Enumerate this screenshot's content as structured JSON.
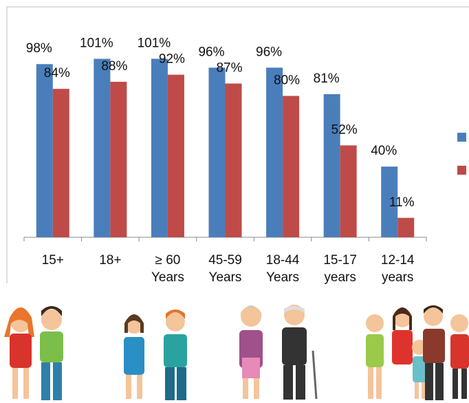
{
  "chart_data": {
    "type": "bar",
    "categories": [
      "15+",
      "18+",
      "≥ 60 Years",
      "45-59 Years",
      "18-44 Years",
      "15-17 years",
      "12-14 years"
    ],
    "series": [
      {
        "color": "#4a7ebb",
        "values": [
          98,
          101,
          101,
          96,
          96,
          81,
          40
        ],
        "value_labels": [
          "98%",
          "101%",
          "101%",
          "96%",
          "96%",
          "81%",
          "40%"
        ]
      },
      {
        "color": "#be4b48",
        "values": [
          84,
          88,
          92,
          87,
          80,
          52,
          11
        ],
        "value_labels": [
          "84%",
          "88%",
          "92%",
          "87%",
          "80%",
          "52%",
          "11%"
        ]
      }
    ],
    "ylim": [
      0,
      130
    ]
  }
}
